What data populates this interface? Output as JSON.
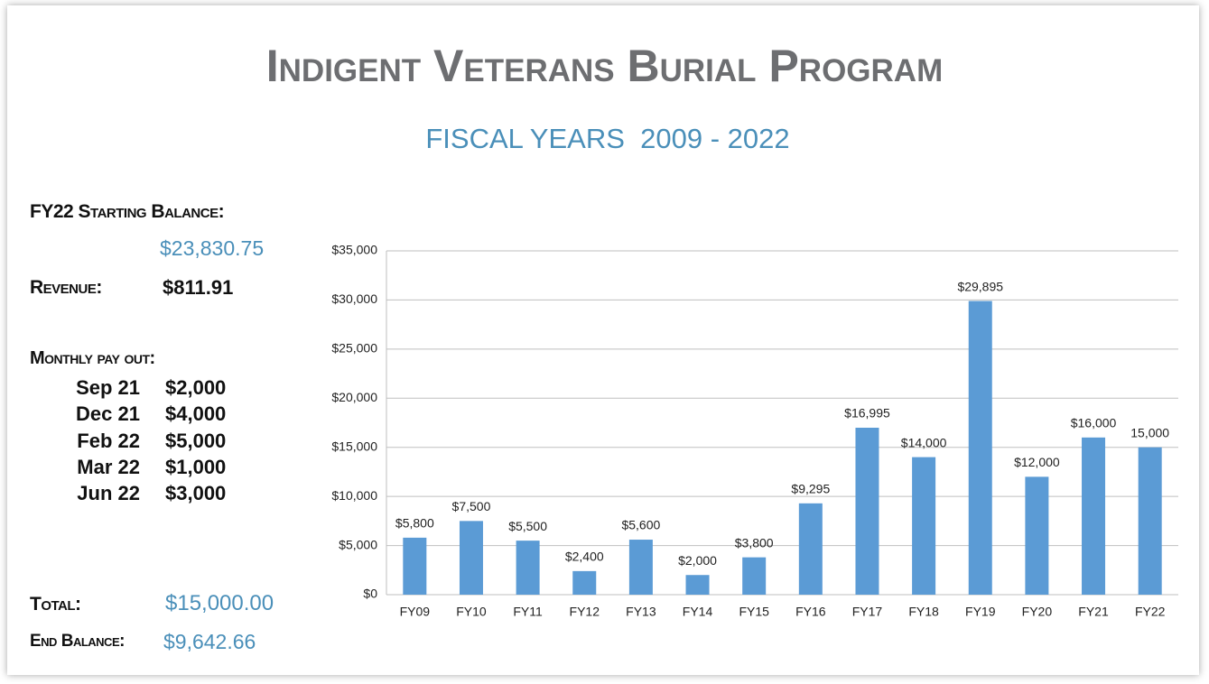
{
  "chart_data": {
    "type": "bar",
    "title": "Indigent Veterans Burial Program",
    "subtitle": "FISCAL YEARS  2009 - 2022",
    "categories": [
      "FY09",
      "FY10",
      "FY11",
      "FY12",
      "FY13",
      "FY14",
      "FY15",
      "FY16",
      "FY17",
      "FY18",
      "FY19",
      "FY20",
      "FY21",
      "FY22"
    ],
    "values": [
      5800,
      7500,
      5500,
      2400,
      5600,
      2000,
      3800,
      9295,
      16995,
      14000,
      29895,
      12000,
      16000,
      15000
    ],
    "value_labels": [
      "$5,800",
      "$7,500",
      "$5,500",
      "$2,400",
      "$5,600",
      "$2,000",
      "$3,800",
      "$9,295",
      "$16,995",
      "$14,000",
      "$29,895",
      "$12,000",
      "$16,000",
      "15,000"
    ],
    "color": "#5b9bd5",
    "ylim": [
      0,
      35000
    ],
    "yticks": [
      {
        "value": 0,
        "label": "$0"
      },
      {
        "value": 5000,
        "label": "$5,000"
      },
      {
        "value": 10000,
        "label": "$10,000"
      },
      {
        "value": 15000,
        "label": "$15,000"
      },
      {
        "value": 20000,
        "label": "$20,000"
      },
      {
        "value": 25000,
        "label": "$25,000"
      },
      {
        "value": 30000,
        "label": "$30,000"
      },
      {
        "value": 35000,
        "label": "$35,000"
      }
    ],
    "grid": true
  },
  "summary": {
    "starting_label": "FY22 Starting Balance:",
    "starting_value": "$23,830.75",
    "revenue_label": "Revenue:",
    "revenue_value": "$811.91",
    "payout_label": "Monthly pay out:",
    "payouts": [
      [
        "Sep 21",
        "$2,000"
      ],
      [
        "Dec 21",
        "$4,000"
      ],
      [
        "Feb 22",
        "$5,000"
      ],
      [
        "Mar 22",
        "$1,000"
      ],
      [
        "Jun 22",
        "$3,000"
      ]
    ],
    "total_label": "Total:",
    "total_value": "$15,000.00",
    "end_label": "End Balance:",
    "end_value": "$9,642.66"
  }
}
